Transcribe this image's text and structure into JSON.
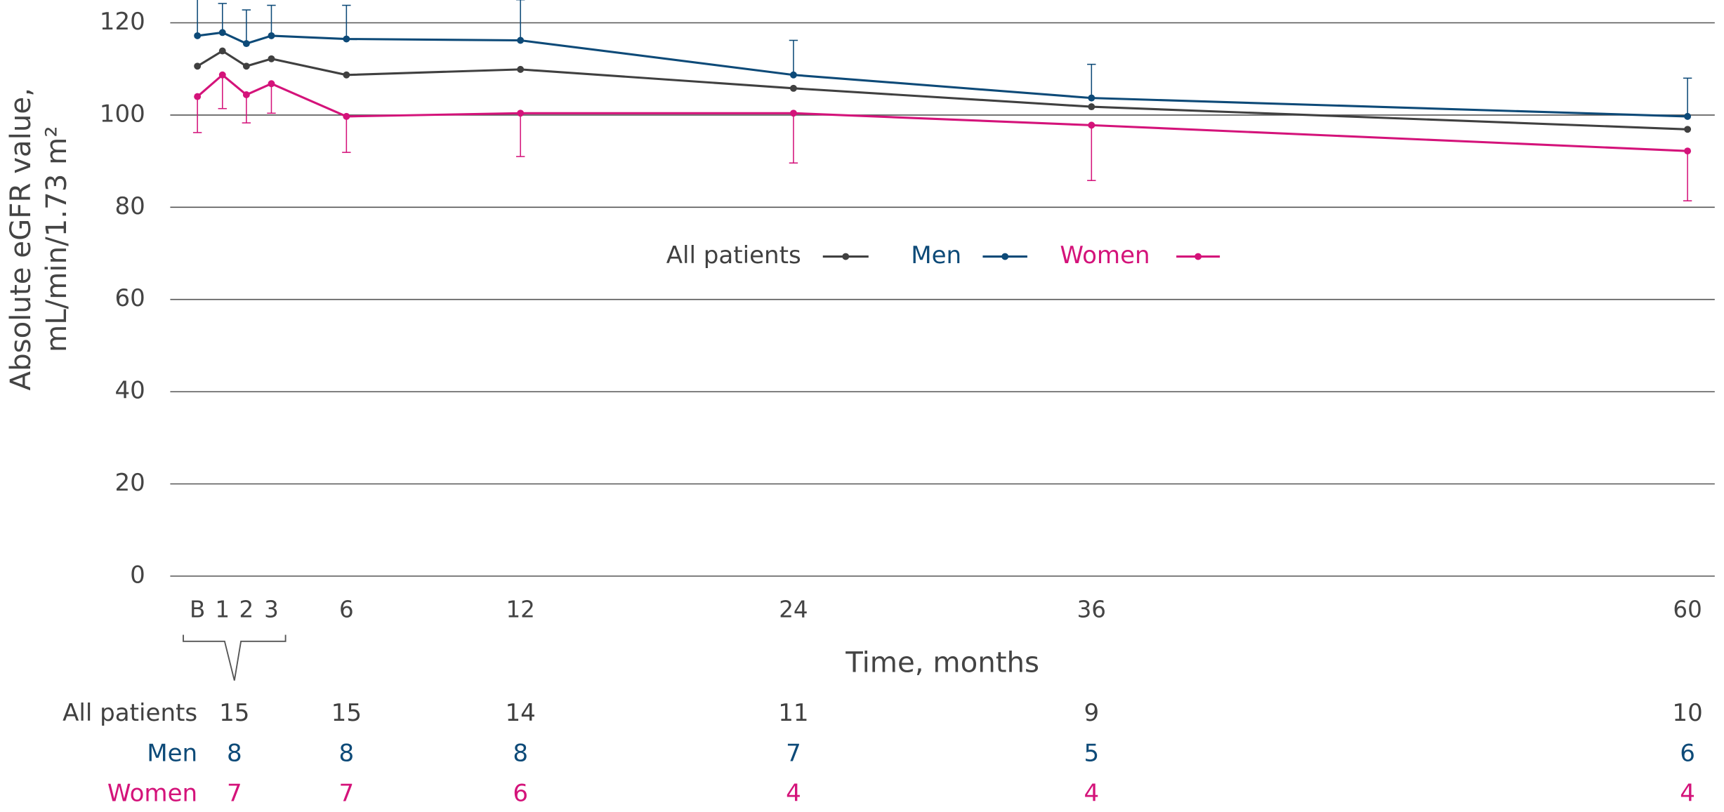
{
  "chart_data": {
    "type": "line",
    "y_label": [
      "Absolute eGFR value,",
      "mL/min/1.73 m²"
    ],
    "x_label": "Time, months",
    "categories": [
      "B",
      "1",
      "2",
      "3",
      "6",
      "12",
      "24",
      "36",
      "60"
    ],
    "series": [
      {
        "name": "All patients",
        "color": "#404040",
        "values": [
          110.6,
          113.9,
          110.6,
          112.2,
          108.7,
          109.9,
          105.8,
          101.8,
          96.9
        ]
      },
      {
        "name": "Men",
        "color": "#0d4a78",
        "values": [
          117.2,
          117.9,
          115.5,
          117.2,
          116.5,
          116.2,
          108.7,
          103.7,
          99.7
        ],
        "errors": [
          8,
          6.3,
          7.3,
          6.6,
          7.3,
          8.8,
          7.5,
          7.3,
          8.3
        ],
        "error_side": "up"
      },
      {
        "name": "Women",
        "color": "#d4137a",
        "values": [
          104,
          108.7,
          104.4,
          106.8,
          99.7,
          100.4,
          100.4,
          97.8,
          92.2
        ],
        "errors": [
          7.8,
          7.3,
          6.1,
          6.4,
          7.8,
          9.4,
          10.8,
          12,
          10.8
        ],
        "error_side": "down"
      }
    ],
    "ylim": [
      0,
      120
    ],
    "yticks": [
      0,
      20,
      40,
      60,
      80,
      100,
      120
    ],
    "grid": true,
    "legend": "center",
    "n_table": {
      "rows": [
        {
          "name": "All patients",
          "values": [
            15,
            15,
            14,
            11,
            9,
            10
          ]
        },
        {
          "name": "Men",
          "values": [
            8,
            8,
            8,
            7,
            5,
            6
          ]
        },
        {
          "name": "Women",
          "values": [
            7,
            7,
            6,
            4,
            4,
            4
          ]
        }
      ]
    }
  }
}
